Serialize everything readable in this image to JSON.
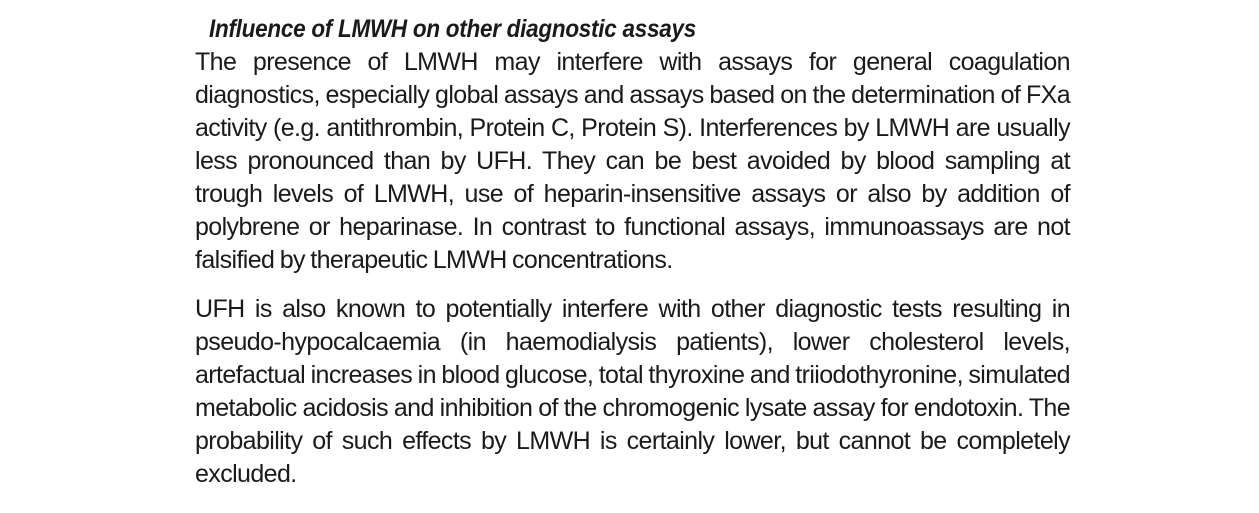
{
  "document": {
    "heading": "Influence of LMWH on other diagnostic assays",
    "paragraphs": [
      "The presence of LMWH may interfere with assays for general coagulation diagnostics, especially global assays and assays based on the determination of FXa activity (e.g. antithrombin, Protein C, Protein S). Interferences by LMWH are usually less pronounced than by UFH. They can be best avoided by blood sampling at trough levels of LMWH, use of heparin-insensitive assays or also by addition of polybrene or heparinase. In contrast to functional assays, immunoassays are not falsified by therapeutic LMWH concentrations.",
      "UFH is also known to potentially interfere with other diagnostic tests resulting in pseudo-hypocalcaemia (in haemodialysis patients), lower cholesterol levels, artefactual increases in blood glucose, total thyroxine and triiodothyronine, simulated metabolic acidosis and inhibition of the chromogenic lysate assay for endotoxin. The probability of such effects by LMWH is certainly lower, but cannot be completely excluded."
    ]
  }
}
